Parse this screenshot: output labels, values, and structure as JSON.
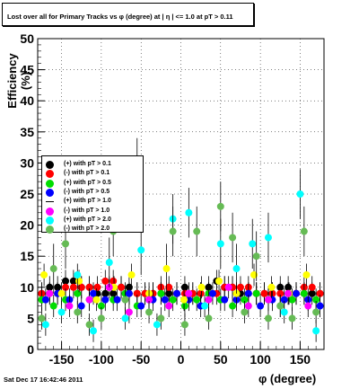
{
  "title": "Lost over all for Primary Tracks vs φ (degree) at | η | <= 1.0 at pT > 0.11",
  "footer": "Sat Dec 17 16:42:46 2011",
  "chart_data": {
    "type": "scatter",
    "xlabel": "φ (degree)",
    "ylabel": "Efficiency (%)",
    "xlim": [
      -180,
      180
    ],
    "ylim": [
      0,
      50
    ],
    "xticks": [
      -150,
      -100,
      -50,
      0,
      50,
      100,
      150
    ],
    "yticks": [
      0,
      5,
      10,
      15,
      20,
      25,
      30,
      35,
      40,
      45,
      50
    ],
    "grid": true,
    "legend_position": "left-middle",
    "series": [
      {
        "name": "(+) with pT > 0.1",
        "color": "#000000",
        "x": [
          -175,
          -165,
          -155,
          -145,
          -135,
          -125,
          -115,
          -105,
          -95,
          -85,
          -75,
          -65,
          -55,
          -45,
          -35,
          -25,
          -15,
          -5,
          5,
          15,
          25,
          35,
          45,
          55,
          65,
          75,
          85,
          95,
          105,
          115,
          125,
          135,
          145,
          155,
          165,
          175
        ],
        "y": [
          9,
          10,
          10,
          11,
          11,
          10,
          10,
          9,
          9,
          9,
          10,
          10,
          9,
          9,
          9,
          9,
          9,
          9,
          10,
          9,
          9,
          10,
          11,
          10,
          10,
          9,
          9,
          9,
          9,
          9,
          10,
          10,
          9,
          9,
          9,
          9
        ]
      },
      {
        "name": "(-) with pT > 0.1",
        "color": "#ff0000",
        "x": [
          -175,
          -165,
          -155,
          -145,
          -135,
          -125,
          -115,
          -105,
          -95,
          -85,
          -75,
          -65,
          -55,
          -45,
          -35,
          -25,
          -15,
          -5,
          5,
          15,
          25,
          35,
          45,
          55,
          65,
          75,
          85,
          95,
          105,
          115,
          125,
          135,
          145,
          155,
          165,
          175
        ],
        "y": [
          9,
          9,
          9,
          10,
          10,
          10,
          10,
          10,
          11,
          11,
          10,
          9,
          9,
          9,
          9,
          10,
          10,
          9,
          9,
          9,
          9,
          9,
          9,
          10,
          10,
          10,
          10,
          9,
          9,
          9,
          9,
          9,
          9,
          10,
          10,
          9
        ]
      },
      {
        "name": "(+) with pT > 0.5",
        "color": "#00dd00",
        "x": [
          -175,
          -160,
          -145,
          -130,
          -115,
          -100,
          -85,
          -70,
          -55,
          -40,
          -25,
          -10,
          5,
          20,
          35,
          50,
          65,
          80,
          95,
          110,
          125,
          140,
          155,
          170
        ],
        "y": [
          8,
          7,
          8,
          9,
          8,
          7,
          8,
          9,
          7,
          8,
          9,
          8,
          7,
          8,
          9,
          8,
          7,
          8,
          9,
          8,
          7,
          8,
          9,
          8
        ]
      },
      {
        "name": "(-) with pT > 0.5",
        "color": "#0000ff",
        "x": [
          -170,
          -155,
          -140,
          -125,
          -110,
          -95,
          -80,
          -65,
          -50,
          -35,
          -20,
          -5,
          10,
          25,
          40,
          55,
          70,
          85,
          100,
          115,
          130,
          145,
          160,
          175
        ],
        "y": [
          8,
          9,
          8,
          7,
          9,
          8,
          8,
          9,
          7,
          8,
          8,
          9,
          8,
          7,
          9,
          8,
          8,
          9,
          7,
          8,
          8,
          9,
          8,
          7
        ]
      },
      {
        "name": "(+) with pT > 1.0",
        "color": "#ffff00",
        "x": [
          -172,
          -150,
          -128,
          -106,
          -84,
          -62,
          -40,
          -18,
          4,
          26,
          48,
          70,
          92,
          114,
          136,
          158
        ],
        "y": [
          12,
          9,
          11,
          8,
          10,
          12,
          9,
          13,
          8,
          10,
          11,
          9,
          12,
          10,
          9,
          12
        ]
      },
      {
        "name": "(-) with pT > 1.0",
        "color": "#ff00ff",
        "x": [
          -165,
          -140,
          -115,
          -90,
          -65,
          -40,
          -15,
          10,
          35,
          60,
          85,
          110,
          135,
          160
        ],
        "y": [
          9,
          7,
          8,
          10,
          6,
          8,
          7,
          9,
          8,
          10,
          7,
          8,
          9,
          7
        ]
      },
      {
        "name": "(+) with pT > 2.0",
        "color": "#00ffff",
        "x": [
          -170,
          -150,
          -130,
          -110,
          -90,
          -70,
          -50,
          -30,
          -10,
          10,
          30,
          50,
          70,
          90,
          110,
          130,
          150,
          170
        ],
        "y": [
          4,
          6,
          12,
          3,
          14,
          5,
          16,
          4,
          21,
          22,
          7,
          17,
          13,
          17,
          18,
          6,
          25,
          3
        ]
      },
      {
        "name": "(-) with pT > 2.0",
        "color": "#66bb55",
        "x": [
          -175,
          -160,
          -145,
          -130,
          -115,
          -100,
          -85,
          -70,
          -55,
          -40,
          -25,
          -10,
          5,
          20,
          35,
          50,
          65,
          80,
          95,
          110,
          125,
          140,
          155,
          170
        ],
        "y": [
          5,
          13,
          17,
          6,
          4,
          5,
          19,
          8,
          30,
          6,
          5,
          19,
          4,
          19,
          5,
          23,
          18,
          6,
          15,
          5,
          7,
          5,
          19,
          6
        ]
      }
    ]
  }
}
